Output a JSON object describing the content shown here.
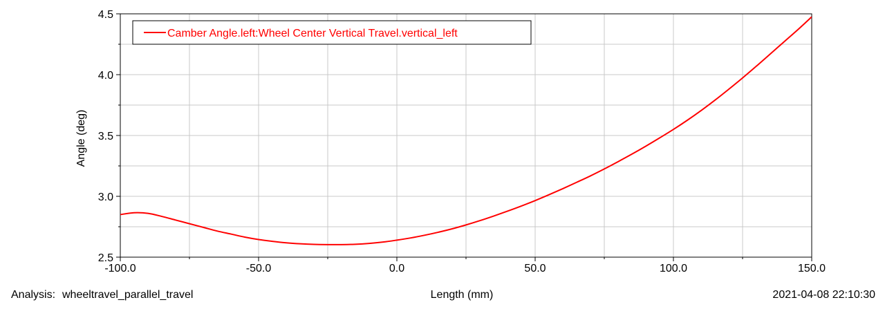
{
  "chart_data": {
    "type": "line",
    "title": "",
    "xlabel": "Length (mm)",
    "ylabel": "Angle (deg)",
    "xlim": [
      -100,
      150
    ],
    "ylim": [
      2.5,
      4.5
    ],
    "xticks": [
      -100,
      -50,
      0,
      50,
      100,
      150
    ],
    "xtick_labels": [
      "-100.0",
      "-50.0",
      "0.0",
      "50.0",
      "100.0",
      "150.0"
    ],
    "yticks": [
      2.5,
      3.0,
      3.5,
      4.0,
      4.5
    ],
    "ytick_labels": [
      "2.5",
      "3.0",
      "3.5",
      "4.0",
      "4.5"
    ],
    "grid": true,
    "legend_position": "top-left",
    "series": [
      {
        "name": "Camber Angle.left:Wheel Center Vertical Travel.vertical_left",
        "color": "#ff0000",
        "x": [
          -100,
          -95,
          -90,
          -85,
          -80,
          -75,
          -70,
          -65,
          -60,
          -55,
          -50,
          -45,
          -40,
          -35,
          -30,
          -25,
          -20,
          -15,
          -10,
          -5,
          0,
          5,
          10,
          15,
          20,
          25,
          30,
          35,
          40,
          45,
          50,
          55,
          60,
          65,
          70,
          75,
          80,
          85,
          90,
          95,
          100,
          105,
          110,
          115,
          120,
          125,
          130,
          135,
          140,
          145,
          150
        ],
        "y": [
          2.85,
          2.865,
          2.86,
          2.835,
          2.805,
          2.775,
          2.745,
          2.715,
          2.69,
          2.665,
          2.645,
          2.63,
          2.618,
          2.61,
          2.605,
          2.603,
          2.603,
          2.606,
          2.613,
          2.624,
          2.64,
          2.658,
          2.68,
          2.705,
          2.733,
          2.765,
          2.8,
          2.838,
          2.878,
          2.92,
          2.965,
          3.013,
          3.063,
          3.115,
          3.168,
          3.225,
          3.285,
          3.347,
          3.412,
          3.48,
          3.55,
          3.625,
          3.705,
          3.79,
          3.88,
          3.973,
          4.07,
          4.17,
          4.27,
          4.37,
          4.475
        ]
      }
    ]
  },
  "footer": {
    "analysis_label": "Analysis:",
    "analysis_name": "wheeltravel_parallel_travel",
    "timestamp": "2021-04-08 22:10:30"
  }
}
